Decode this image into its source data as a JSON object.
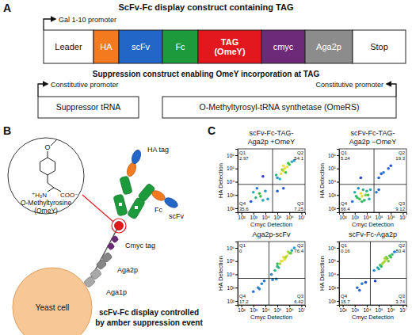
{
  "panel_a": {
    "label": "A",
    "title": "ScFv-Fc display construct containing TAG",
    "promoter": "Gal 1-10 promoter",
    "segments": [
      {
        "label": [
          "Leader"
        ],
        "color": "#ffffff"
      },
      {
        "label": [
          "HA"
        ],
        "color": "#f47a20"
      },
      {
        "label": [
          "scFv"
        ],
        "color": "#2266c8"
      },
      {
        "label": [
          "Fc"
        ],
        "color": "#1d9a3c"
      },
      {
        "label": [
          "TAG",
          "(OmeY)"
        ],
        "color": "#e3171e"
      },
      {
        "label": [
          "cmyc"
        ],
        "color": "#6c2a78"
      },
      {
        "label": [
          "Aga2p"
        ],
        "color": "#8c8c8c"
      },
      {
        "label": [
          "Stop"
        ],
        "color": "#ffffff"
      }
    ],
    "subtitle": "Suppression construct enabling OmeY incorporation at TAG",
    "left_promoter": "Constitutive promoter",
    "right_promoter": "Constitutive promoter",
    "boxes": [
      "Suppressor tRNA",
      "O-Methyltyrosyl-tRNA synthetase (OmeRS)"
    ]
  },
  "panel_b": {
    "label": "B",
    "molecule": [
      "O-Methyltyrosine",
      "(OmeY)"
    ],
    "atoms": [
      "O",
      "⁺H₃N",
      "COO⁻"
    ],
    "ha": "HA tag",
    "scfv": "scFv",
    "fc": "Fc",
    "cmyc": "Cmyc tag",
    "aga2p": "Aga2p",
    "aga1p": "Aga1p",
    "cell": "Yeast cell",
    "caption": [
      "scFv-Fc display controlled",
      "by amber suppression event"
    ]
  },
  "panel_c": {
    "label": "C"
  },
  "chart_data": [
    {
      "type": "scatter",
      "title": [
        "scFv-Fc-TAG-",
        "Aga2p +OmeY"
      ],
      "x_label": "Cmyc Detection",
      "y_label": "HA Detection",
      "log": true,
      "color": "#2b3fd6",
      "xlim": [
        50,
        20000000.0
      ],
      "ylim": [
        50,
        3000000.0
      ],
      "xticks": [
        {
          "value": 100,
          "label": "10²"
        },
        {
          "value": 1000,
          "label": "10³"
        },
        {
          "value": 10000,
          "label": "10⁴"
        },
        {
          "value": 100000,
          "label": "10⁵"
        },
        {
          "value": 1000000,
          "label": "10⁶"
        },
        {
          "value": 10000000,
          "label": "10⁷"
        }
      ],
      "yticks": [
        {
          "value": 100,
          "label": "10²"
        },
        {
          "value": 1000,
          "label": "10³"
        },
        {
          "value": 10000,
          "label": "10⁴"
        },
        {
          "value": 100000,
          "label": "10⁵"
        },
        {
          "value": 1000000,
          "label": "10⁶"
        }
      ],
      "gates": {
        "x": 40000.0,
        "y": 6300.0
      },
      "quadrants": [
        {
          "name": "Q1",
          "value": 2.97
        },
        {
          "name": "Q2",
          "value": 54.1
        },
        {
          "name": "Q3",
          "value": 7.25
        },
        {
          "name": "Q4",
          "value": 35.6
        }
      ],
      "points": {
        "x": [
          1600.0,
          3200.0,
          6300.0,
          1000.0,
          10000.0,
          4000.0,
          16000.0,
          2000.0,
          630.0,
          100000.0,
          200000.0,
          320000.0,
          400000.0,
          630000.0,
          1000000.0,
          250000.0,
          500000.0,
          1600000.0,
          80000.0,
          800000.0,
          160000.0,
          2500000.0,
          320000.0,
          100000.0,
          320000.0,
          6300.0
        ],
        "y": [
          630.0,
          1300.0,
          400.0,
          1600.0,
          2000.0,
          800.0,
          500.0,
          3200.0,
          320.0,
          20000.0,
          40000.0,
          63000.0,
          100000.0,
          130000.0,
          200000.0,
          80000.0,
          50000.0,
          320000.0,
          32000.0,
          250000.0,
          16000.0,
          400000.0,
          160000.0,
          2000.0,
          3200.0,
          25000.0
        ]
      }
    },
    {
      "type": "scatter",
      "title": [
        "scFv-Fc-TAG-",
        "Aga2p −OmeY"
      ],
      "x_label": "Cmyc Detection",
      "y_label": "HA Detection",
      "log": true,
      "color": "#2b3fd6",
      "xlim": [
        50,
        20000000.0
      ],
      "ylim": [
        50,
        3000000.0
      ],
      "xticks": [
        {
          "value": 100,
          "label": "10²"
        },
        {
          "value": 1000,
          "label": "10³"
        },
        {
          "value": 10000,
          "label": "10⁴"
        },
        {
          "value": 100000,
          "label": "10⁵"
        },
        {
          "value": 1000000,
          "label": "10⁶"
        },
        {
          "value": 10000000,
          "label": "10⁷"
        }
      ],
      "yticks": [
        {
          "value": 100,
          "label": "10²"
        },
        {
          "value": 1000,
          "label": "10³"
        },
        {
          "value": 10000,
          "label": "10⁴"
        },
        {
          "value": 100000,
          "label": "10⁵"
        },
        {
          "value": 1000000,
          "label": "10⁶"
        }
      ],
      "gates": {
        "x": 40000.0,
        "y": 6300.0
      },
      "quadrants": [
        {
          "name": "Q1",
          "value": 5.24
        },
        {
          "name": "Q2",
          "value": 19.3
        },
        {
          "name": "Q3",
          "value": 9.12
        },
        {
          "name": "Q4",
          "value": 66.4
        }
      ],
      "points": {
        "x": [
          1600.0,
          3200.0,
          6300.0,
          1000.0,
          10000.0,
          4000.0,
          16000.0,
          2000.0,
          630.0,
          8000.0,
          2500.0,
          20000.0,
          5000.0,
          1300.0,
          4000.0,
          13000.0,
          100000.0,
          250000.0,
          630000.0,
          160000.0,
          1000000.0,
          100000.0,
          63000.0,
          3200.0
        ],
        "y": [
          630.0,
          1300.0,
          400.0,
          1600.0,
          2000.0,
          800.0,
          500.0,
          3200.0,
          320.0,
          1000.0,
          500.0,
          2500.0,
          2500.0,
          800.0,
          320.0,
          1000.0,
          20000.0,
          50000.0,
          100000.0,
          40000.0,
          160000.0,
          2500.0,
          1600.0,
          20000.0
        ]
      }
    },
    {
      "type": "scatter",
      "title": [
        "Aga2p-scFv"
      ],
      "x_label": "Cmyc Detection",
      "y_label": "HA Detection",
      "log": true,
      "color": "#2b3fd6",
      "xlim": [
        50,
        20000000.0
      ],
      "ylim": [
        50,
        3000000.0
      ],
      "xticks": [
        {
          "value": 100,
          "label": "10²"
        },
        {
          "value": 1000,
          "label": "10³"
        },
        {
          "value": 10000,
          "label": "10⁴"
        },
        {
          "value": 100000,
          "label": "10⁵"
        },
        {
          "value": 1000000,
          "label": "10⁶"
        },
        {
          "value": 10000000,
          "label": "10⁷"
        }
      ],
      "yticks": [
        {
          "value": 100,
          "label": "10²"
        },
        {
          "value": 1000,
          "label": "10³"
        },
        {
          "value": 10000,
          "label": "10⁴"
        },
        {
          "value": 100000,
          "label": "10⁵"
        },
        {
          "value": 1000000,
          "label": "10⁶"
        }
      ],
      "gates": {
        "x": 20000.0,
        "y": 5000.0
      },
      "quadrants": [
        {
          "name": "Q1",
          "value": 0
        },
        {
          "name": "Q2",
          "value": 76.4
        },
        {
          "name": "Q3",
          "value": 6.42
        },
        {
          "name": "Q4",
          "value": 17.2
        }
      ],
      "points": {
        "x": [
          1000.0,
          2500.0,
          5000.0,
          8000.0,
          3200.0,
          32000.0,
          63000.0,
          100000.0,
          160000.0,
          250000.0,
          400000.0,
          630000.0,
          1000000.0,
          1600000.0,
          2500000.0,
          200000.0,
          320000.0,
          500000.0,
          130000.0,
          800000.0,
          400000.0,
          100000.0,
          1300000.0,
          40000.0,
          80000.0
        ],
        "y": [
          500.0,
          1000.0,
          2000.0,
          3200.0,
          800.0,
          10000.0,
          20000.0,
          40000.0,
          63000.0,
          100000.0,
          160000.0,
          250000.0,
          400000.0,
          630000.0,
          1000000.0,
          100000.0,
          200000.0,
          200000.0,
          32000.0,
          500000.0,
          130000.0,
          63000.0,
          400000.0,
          4000.0,
          4500.0
        ]
      }
    },
    {
      "type": "scatter",
      "title": [
        "scFv-Fc-Aga2p"
      ],
      "x_label": "Cmyc Detection",
      "y_label": "HA Detection",
      "log": true,
      "color": "#2b3fd6",
      "xlim": [
        50,
        20000000.0
      ],
      "ylim": [
        50,
        3000000.0
      ],
      "xticks": [
        {
          "value": 100,
          "label": "10²"
        },
        {
          "value": 1000,
          "label": "10³"
        },
        {
          "value": 10000,
          "label": "10⁴"
        },
        {
          "value": 100000,
          "label": "10⁵"
        },
        {
          "value": 1000000,
          "label": "10⁶"
        },
        {
          "value": 10000000,
          "label": "10⁷"
        }
      ],
      "yticks": [
        {
          "value": 100,
          "label": "10²"
        },
        {
          "value": 1000,
          "label": "10³"
        },
        {
          "value": 10000,
          "label": "10⁴"
        },
        {
          "value": 100000,
          "label": "10⁵"
        },
        {
          "value": 1000000,
          "label": "10⁶"
        }
      ],
      "gates": {
        "x": 20000.0,
        "y": 5000.0
      },
      "quadrants": [
        {
          "name": "Q1",
          "value": 0.16
        },
        {
          "name": "Q2",
          "value": 80.4
        },
        {
          "name": "Q3",
          "value": 3.74
        },
        {
          "name": "Q4",
          "value": 15.7
        }
      ],
      "points": {
        "x": [
          1600.0,
          4000.0,
          8000.0,
          2500.0,
          40000.0,
          80000.0,
          130000.0,
          200000.0,
          320000.0,
          400000.0,
          500000.0,
          800000.0,
          1300000.0,
          2000000.0,
          250000.0,
          400000.0,
          630000.0,
          160000.0,
          320000.0,
          1000000.0,
          100000.0,
          50000.0
        ],
        "y": [
          1000.0,
          2000.0,
          2500.0,
          630.0,
          20000.0,
          32000.0,
          50000.0,
          63000.0,
          100000.0,
          130000.0,
          160000.0,
          250000.0,
          320000.0,
          500000.0,
          80000.0,
          200000.0,
          100000.0,
          40000.0,
          160000.0,
          200000.0,
          25000.0,
          3200.0
        ]
      }
    }
  ]
}
